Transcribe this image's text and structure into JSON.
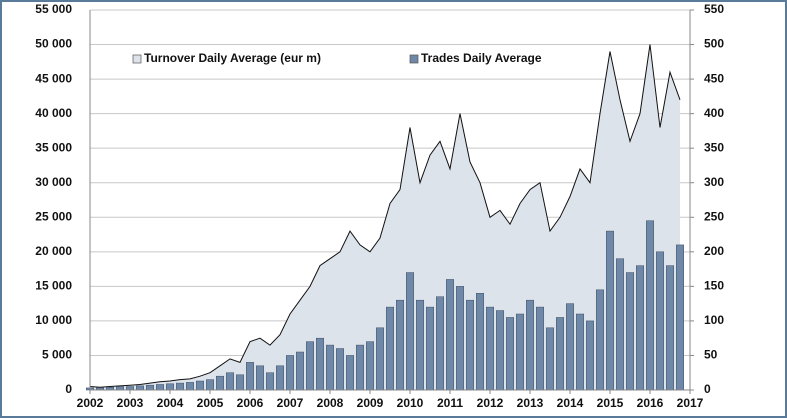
{
  "chart_data": {
    "type": "bar-area",
    "x": [
      2002,
      2002.25,
      2002.5,
      2002.75,
      2003,
      2003.25,
      2003.5,
      2003.75,
      2004,
      2004.25,
      2004.5,
      2004.75,
      2005,
      2005.25,
      2005.5,
      2005.75,
      2006,
      2006.25,
      2006.5,
      2006.75,
      2007,
      2007.25,
      2007.5,
      2007.75,
      2008,
      2008.25,
      2008.5,
      2008.75,
      2009,
      2009.25,
      2009.5,
      2009.75,
      2010,
      2010.25,
      2010.5,
      2010.75,
      2011,
      2011.25,
      2011.5,
      2011.75,
      2012,
      2012.25,
      2012.5,
      2012.75,
      2013,
      2013.25,
      2013.5,
      2013.75,
      2014,
      2014.25,
      2014.5,
      2014.75,
      2015,
      2015.25,
      2015.5,
      2015.75,
      2016,
      2016.25,
      2016.5,
      2016.75
    ],
    "series": [
      {
        "name": "Turnover Daily Average (eur m)",
        "color": "#dde3ea",
        "axis": "y2",
        "values": [
          5,
          4,
          5,
          6,
          7,
          8,
          10,
          12,
          13,
          15,
          16,
          20,
          25,
          35,
          45,
          40,
          70,
          75,
          65,
          80,
          110,
          130,
          150,
          180,
          190,
          200,
          230,
          210,
          200,
          220,
          270,
          290,
          380,
          300,
          340,
          360,
          320,
          400,
          330,
          300,
          250,
          260,
          240,
          270,
          290,
          300,
          230,
          250,
          280,
          320,
          300,
          400,
          490,
          420,
          360,
          400,
          500,
          380,
          460,
          420
        ]
      },
      {
        "name": "Trades Daily Average",
        "color": "#6f88a8",
        "values": [
          300,
          300,
          400,
          500,
          500,
          600,
          700,
          800,
          900,
          1000,
          1100,
          1300,
          1500,
          2000,
          2500,
          2200,
          4000,
          3500,
          2500,
          3500,
          5000,
          5500,
          7000,
          7500,
          6500,
          6000,
          5000,
          6500,
          7000,
          9000,
          12000,
          13000,
          17000,
          13000,
          12000,
          13500,
          16000,
          15000,
          13000,
          14000,
          12000,
          11500,
          10500,
          11000,
          13000,
          12000,
          9000,
          10500,
          12500,
          11000,
          10000,
          14500,
          23000,
          19000,
          17000,
          18000,
          24500,
          20000,
          18000,
          21000
        ]
      }
    ],
    "xlim": [
      2002,
      2017
    ],
    "xticks": [
      2002,
      2003,
      2004,
      2005,
      2006,
      2007,
      2008,
      2009,
      2010,
      2011,
      2012,
      2013,
      2014,
      2015,
      2016,
      2017
    ],
    "ylim": [
      0,
      55000
    ],
    "yticks": [
      0,
      {
        "value": 5000,
        "label": "5 000"
      },
      {
        "value": 10000,
        "label": "10 000"
      },
      {
        "value": 15000,
        "label": "15 000"
      },
      {
        "value": 20000,
        "label": "20 000"
      },
      {
        "value": 25000,
        "label": "25 000"
      },
      {
        "value": 30000,
        "label": "30 000"
      },
      {
        "value": 35000,
        "label": "35 000"
      },
      {
        "value": 40000,
        "label": "40 000"
      },
      {
        "value": 45000,
        "label": "45 000"
      },
      {
        "value": 50000,
        "label": "50 000"
      },
      {
        "value": 55000,
        "label": "55 000"
      }
    ],
    "y2lim": [
      0,
      550
    ],
    "y2ticks": [
      0,
      50,
      100,
      150,
      200,
      250,
      300,
      350,
      400,
      450,
      500,
      550
    ],
    "grid": true
  }
}
